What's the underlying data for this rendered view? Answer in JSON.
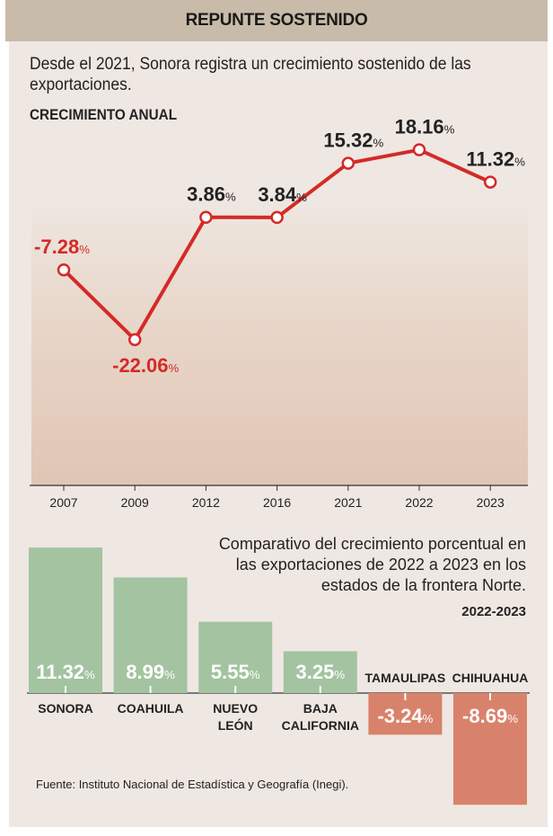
{
  "header": {
    "title": "REPUNTE SOSTENIDO"
  },
  "intro": "Desde el 2021, Sonora registra un crecimiento sostenido de las exportaciones.",
  "source": "Fuente: Instituto Nacional de Estadística y Geografía (Inegi).",
  "chart_data": [
    {
      "type": "line",
      "title": "CRECIMIENTO ANUAL",
      "ylabel": "%",
      "categories": [
        "2007",
        "2009",
        "2012",
        "2016",
        "2021",
        "2022",
        "2023"
      ],
      "values": [
        -7.28,
        -22.06,
        3.86,
        3.84,
        15.32,
        18.16,
        11.32
      ],
      "labels": [
        "-7.28",
        "-22.06",
        "3.86",
        "3.84",
        "15.32",
        "18.16",
        "11.32"
      ],
      "unit": "%",
      "colors": {
        "line": "#d42a27",
        "negative_label": "#d42a27",
        "positive_label": "#222222"
      }
    },
    {
      "type": "bar",
      "title": "Comparativo del crecimiento porcentual en las exportaciones de 2022 a 2023 en los estados de la frontera Norte.",
      "subtitle": "2022-2023",
      "categories": [
        [
          "SONORA"
        ],
        [
          "COAHUILA"
        ],
        [
          "NUEVO",
          "LEÓN"
        ],
        [
          "BAJA",
          "CALIFORNIA"
        ],
        [
          "TAMAULIPAS"
        ],
        [
          "CHIHUAHUA"
        ]
      ],
      "values": [
        11.32,
        8.99,
        5.55,
        3.25,
        -3.24,
        -8.69
      ],
      "labels": [
        "11.32",
        "8.99",
        "5.55",
        "3.25",
        "-3.24",
        "-8.69"
      ],
      "unit": "%",
      "colors": {
        "positive": "#a3c3a1",
        "negative": "#d9826b"
      }
    }
  ]
}
